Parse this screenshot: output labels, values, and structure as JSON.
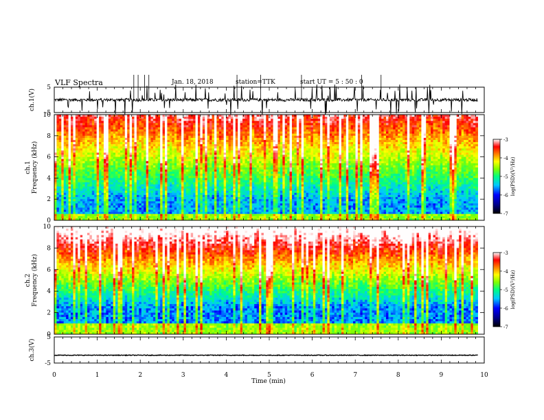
{
  "header": {
    "title": "VLF Spectra",
    "date": "Jan. 18, 2018",
    "station": "station=TTK",
    "start": "start UT =  5 : 50 : 0"
  },
  "chart_data": [
    {
      "type": "line",
      "panel": "ch1-waveform",
      "ylabel": "ch.1(V)",
      "ylim": [
        -5,
        5
      ],
      "yticks": [
        5,
        -5
      ],
      "xlim": [
        0,
        10
      ],
      "baseline": 0,
      "note": "noisy waveform near 0 V with sparse spikes"
    },
    {
      "type": "heatmap",
      "panel": "ch1-spectrogram",
      "ylabel": "ch.1\nFrequency (kHz)",
      "ylim": [
        0,
        10
      ],
      "yticks": [
        0,
        2,
        4,
        6,
        8,
        10
      ],
      "xlim": [
        0,
        9.85
      ],
      "colorbar": {
        "label": "log(PSD)(V²/Hz)",
        "range": [
          -7,
          -3
        ],
        "ticks": [
          -3,
          -4,
          -5,
          -6,
          -7
        ]
      },
      "dominant": "low (blue/black) below 4 kHz, green/yellow above, red near 10 kHz, vertical impulsive streaks"
    },
    {
      "type": "heatmap",
      "panel": "ch2-spectrogram",
      "ylabel": "ch.2\nFrequency (kHz)",
      "ylim": [
        0,
        10
      ],
      "yticks": [
        0,
        2,
        4,
        6,
        8,
        10
      ],
      "xlim": [
        0,
        9.85
      ],
      "colorbar": {
        "label": "log(PSD)(V²/Hz)",
        "range": [
          -7,
          -3
        ],
        "ticks": [
          -3,
          -4,
          -5,
          -6,
          -7
        ]
      },
      "dominant": "red/orange above 6 kHz, blue/black 1-5 kHz, vertical impulsive streaks"
    },
    {
      "type": "line",
      "panel": "ch3-waveform",
      "ylabel": "ch.3(V)",
      "ylim": [
        -5,
        5
      ],
      "yticks": [
        5,
        -5
      ],
      "xlim": [
        0,
        10
      ],
      "baseline": -2,
      "note": "flat line near -2 V"
    }
  ],
  "xaxis": {
    "label": "Time (min)",
    "ticks": [
      "0",
      "1",
      "2",
      "3",
      "4",
      "5",
      "6",
      "7",
      "8",
      "9",
      "10"
    ]
  },
  "colormap": [
    "#000000",
    "#00008b",
    "#0000ff",
    "#00c8ff",
    "#00ff80",
    "#80ff00",
    "#ffff00",
    "#ff8000",
    "#ff0000",
    "#ffffff"
  ]
}
